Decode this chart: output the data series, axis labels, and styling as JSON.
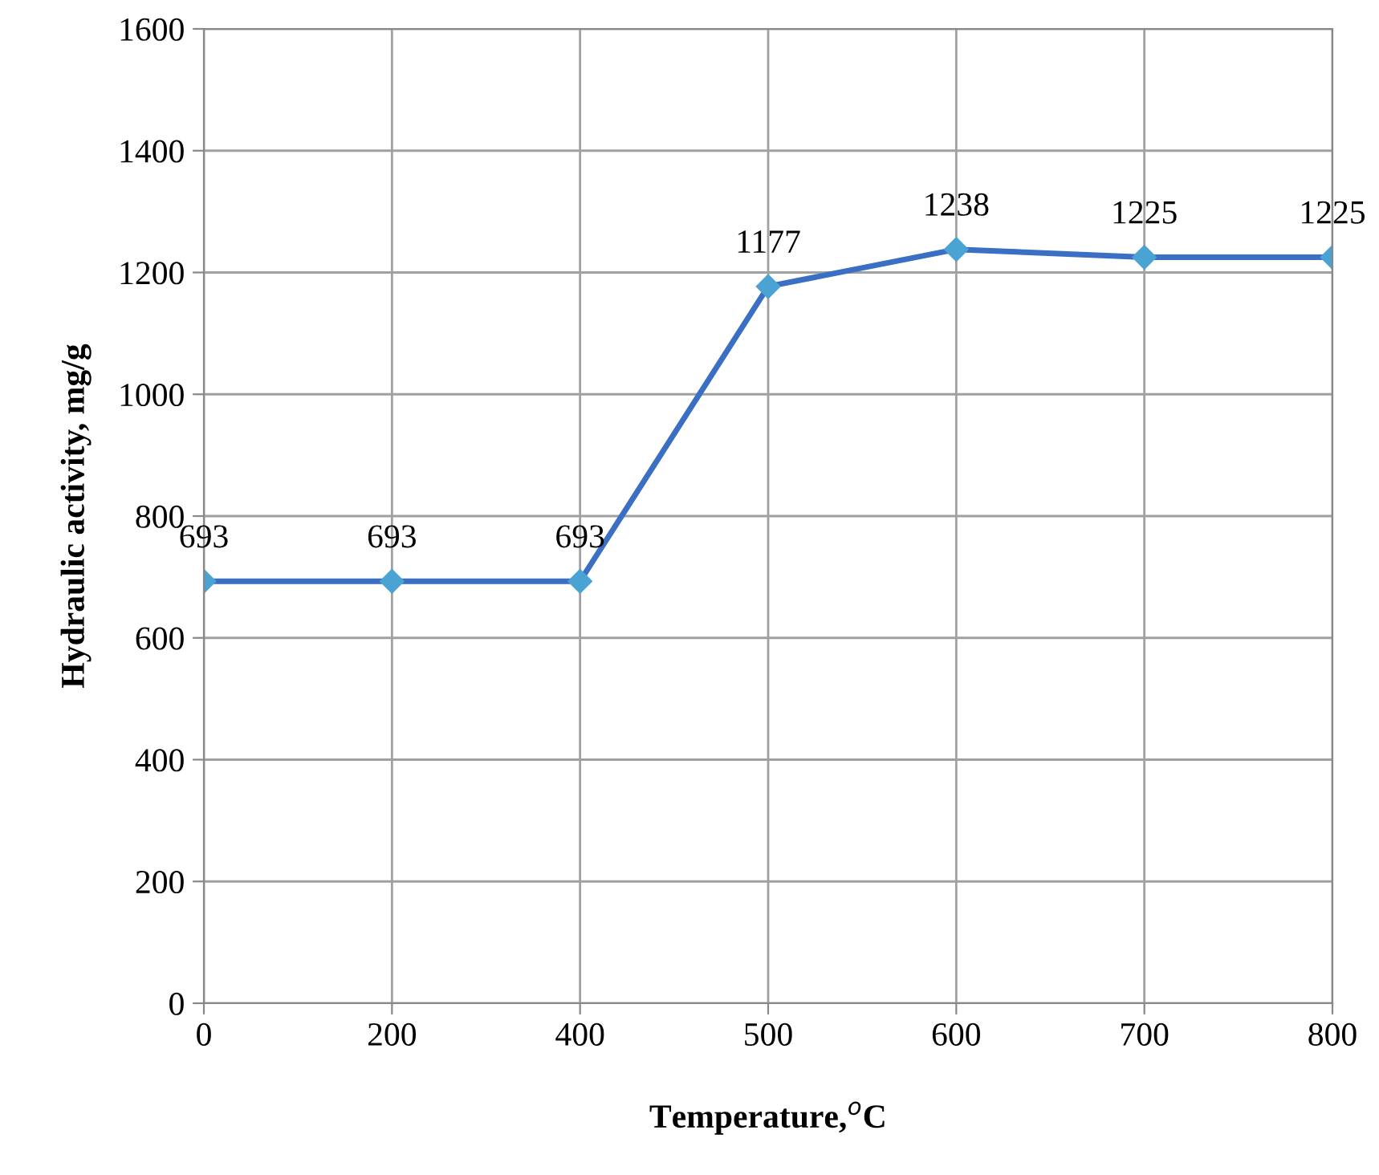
{
  "chart_data": {
    "type": "line",
    "xlabel": "Temperature,$^{o}$C",
    "ylabel": "Hydraulic activity, mg/g",
    "categories": [
      "0",
      "200",
      "400",
      "500",
      "600",
      "700",
      "800"
    ],
    "series": [
      {
        "color": "#3a6fc4",
        "values": [
          693,
          693,
          693,
          1177,
          1238,
          1225,
          1225
        ]
      }
    ],
    "ylim": [
      0,
      1600
    ],
    "yticks": [
      0,
      200,
      400,
      600,
      800,
      1000,
      1200,
      1400,
      1600
    ],
    "grid": true,
    "marker": "diamond",
    "line_style": "solid",
    "data_labels": true,
    "legend": false
  }
}
